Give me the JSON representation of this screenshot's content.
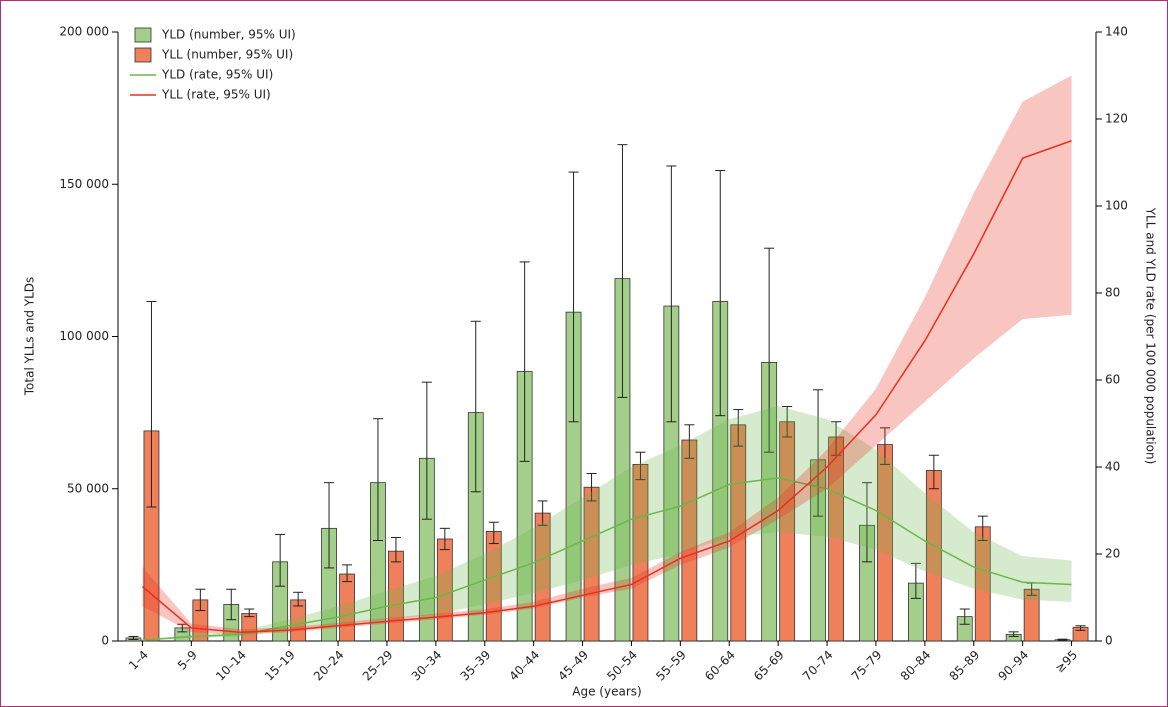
{
  "chart_data": {
    "type": "bar",
    "categories": [
      "1–4",
      "5–9",
      "10–14",
      "15–19",
      "20–24",
      "25–29",
      "30–34",
      "35–39",
      "40–44",
      "45–49",
      "50–54",
      "55–59",
      "60–64",
      "65–69",
      "70–74",
      "75–79",
      "80–84",
      "85–89",
      "90–94",
      "≥95"
    ],
    "series": [
      {
        "name": "YLD (number, 95% UI)",
        "color": "#a3cf8a",
        "values": [
          1000,
          4300,
          12000,
          26000,
          37000,
          52000,
          60000,
          75000,
          88500,
          108000,
          119000,
          110000,
          111500,
          91500,
          59500,
          38000,
          19000,
          8000,
          2200,
          400
        ],
        "lower": [
          500,
          3000,
          7000,
          18000,
          24000,
          33000,
          40000,
          49000,
          59000,
          72000,
          80000,
          72000,
          74000,
          62000,
          41000,
          26000,
          14000,
          5500,
          1500,
          200
        ],
        "upper": [
          1500,
          5500,
          17000,
          35000,
          52000,
          73000,
          85000,
          105000,
          124500,
          154000,
          163000,
          156000,
          154500,
          129000,
          82500,
          52000,
          25500,
          10500,
          3000,
          600
        ]
      },
      {
        "name": "YLL (number, 95% UI)",
        "color": "#f0805a",
        "values": [
          69000,
          13500,
          9000,
          13500,
          22000,
          29500,
          33500,
          36000,
          42000,
          50500,
          58000,
          66000,
          71000,
          72000,
          67000,
          64500,
          56000,
          37500,
          17000,
          4500
        ],
        "lower": [
          44000,
          10000,
          8000,
          11500,
          19500,
          26000,
          30000,
          32000,
          38000,
          46000,
          53000,
          60000,
          64000,
          67000,
          61000,
          58000,
          50000,
          33000,
          15000,
          3500
        ],
        "upper": [
          111500,
          17000,
          10500,
          16000,
          25000,
          34000,
          37000,
          39000,
          46000,
          55000,
          62000,
          71000,
          76000,
          77000,
          72000,
          70000,
          61000,
          41000,
          19000,
          5000
        ]
      },
      {
        "name": "YLD (rate, 95% UI)",
        "color": "#6ab84a",
        "type": "line",
        "axis": "y2",
        "values": [
          0.2,
          1,
          1.5,
          3.5,
          5.5,
          8,
          10,
          14,
          18,
          23,
          28,
          31,
          36,
          37.5,
          35,
          30,
          23,
          17,
          13.5,
          13
        ],
        "lower": [
          0.1,
          0.7,
          1,
          2.5,
          3.5,
          5,
          6,
          8.5,
          11,
          14,
          17.5,
          20,
          24,
          25,
          24,
          21,
          16,
          12,
          9.5,
          9
        ],
        "upper": [
          0.3,
          1.4,
          2.2,
          5,
          8,
          11.5,
          15,
          20,
          26,
          33,
          40,
          45,
          51,
          54,
          51,
          44,
          34,
          25,
          19.5,
          18.5
        ]
      },
      {
        "name": "YLL (rate, 95% UI)",
        "color": "#e8301e",
        "type": "line",
        "axis": "y2",
        "values": [
          12.5,
          3,
          2,
          2.5,
          3.5,
          4.5,
          5.5,
          6.5,
          8,
          10.5,
          13,
          19,
          23,
          30,
          40,
          52,
          69,
          89,
          111,
          115
        ],
        "lower": [
          8,
          2,
          1.5,
          2,
          3,
          4,
          5,
          6,
          7.5,
          10,
          12,
          17.5,
          21.5,
          28,
          35,
          45,
          55,
          65,
          74,
          75
        ],
        "upper": [
          17,
          4,
          2.7,
          3.2,
          4.2,
          5.3,
          6.3,
          7.3,
          9,
          12,
          14.5,
          20.5,
          25,
          33,
          44,
          58,
          79,
          103,
          124,
          130
        ]
      }
    ],
    "ylabel": "Total YLLs and YLDs",
    "y2label": "YLL and YLD rate (per 100 000 population)",
    "xlabel": "Age (years)",
    "ylim": [
      0,
      200000
    ],
    "yticks": [
      {
        "value": 0,
        "label": "0"
      },
      {
        "value": 50000,
        "label": "50 000"
      },
      {
        "value": 100000,
        "label": "100 000"
      },
      {
        "value": 150000,
        "label": "150 000"
      },
      {
        "value": 200000,
        "label": "200 000"
      }
    ],
    "y2lim": [
      0,
      140
    ],
    "y2ticks": [
      0,
      20,
      40,
      60,
      80,
      100,
      120,
      140
    ],
    "legend": "top-left"
  }
}
